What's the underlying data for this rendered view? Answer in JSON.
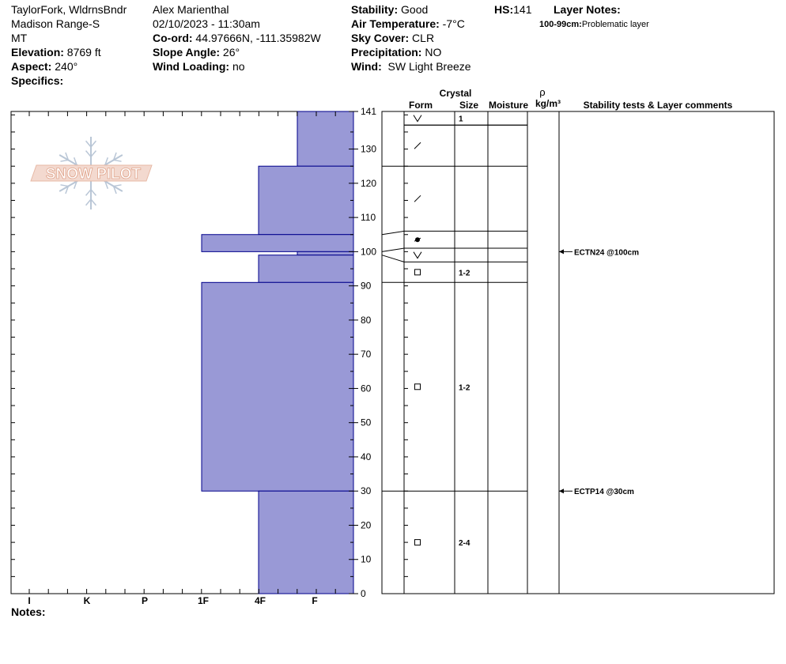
{
  "header": {
    "col1": {
      "location": "TaylorFork, WldrnsBndr",
      "range": "Madison Range-S",
      "state": "MT",
      "elevation_label": "Elevation:",
      "elevation_value": " 8769 ft",
      "aspect_label": "Aspect:",
      "aspect_value": " 240°",
      "specifics_label": "Specifics:"
    },
    "col2": {
      "observer": "Alex Marienthal",
      "datetime": "02/10/2023 - 11:30am",
      "coord_label": "Co-ord:",
      "coord_value": " 44.97666N, -111.35982W",
      "slope_label": "Slope Angle:",
      "slope_value": " 26°",
      "wind_loading_label": "Wind Loading:",
      "wind_loading_value": " no"
    },
    "col3": {
      "stability_label": "Stability:",
      "stability_value": " Good",
      "air_temp_label": "Air Temperature:",
      "air_temp_value": " -7°C",
      "sky_label": "Sky Cover:",
      "sky_value": " CLR",
      "precip_label": "Precipitation:",
      "precip_value": " NO",
      "wind_label": "Wind:",
      "wind_value": "  SW Light Breeze"
    },
    "hs_label": "HS:",
    "hs_value": "141",
    "layer_notes_label": "Layer Notes:",
    "layer_note_range": "100-99cm:",
    "layer_note_text": "Problematic layer"
  },
  "logo_text": "SNOW PILOT",
  "notes_label": "Notes:",
  "colors": {
    "hardness_fill": "#9999d6",
    "hardness_stroke": "#00008b",
    "grid": "#000000"
  },
  "chart_data": {
    "type": "snow-profile",
    "height_axis": {
      "label": "",
      "range": [
        0,
        141
      ],
      "ticks": [
        0,
        10,
        20,
        30,
        40,
        50,
        60,
        70,
        80,
        90,
        100,
        110,
        120,
        130,
        141
      ]
    },
    "hardness_axis": {
      "labels": [
        "I",
        "K",
        "P",
        "1F",
        "4F",
        "F"
      ],
      "scale": [
        "F",
        "4F",
        "1F",
        "P",
        "K",
        "I"
      ]
    },
    "hardness_profile": [
      {
        "top": 141,
        "bottom": 125,
        "hardness": "F"
      },
      {
        "top": 125,
        "bottom": 105,
        "hardness": "4F"
      },
      {
        "top": 105,
        "bottom": 100,
        "hardness": "1F"
      },
      {
        "top": 100,
        "bottom": 99,
        "hardness": "F"
      },
      {
        "top": 99,
        "bottom": 91,
        "hardness": "4F"
      },
      {
        "top": 91,
        "bottom": 30,
        "hardness": "1F"
      },
      {
        "top": 30,
        "bottom": 0,
        "hardness": "4F"
      }
    ],
    "column_headers": {
      "crystal": "Crystal",
      "form": "Form",
      "size": "Size",
      "moisture": "Moisture",
      "rho": "ρ",
      "density_unit": "kg/m³",
      "comments": "Stability tests & Layer comments"
    },
    "layer_boundaries": [
      141,
      137,
      125,
      106,
      101,
      97,
      91,
      30,
      0
    ],
    "layers": [
      {
        "top": 141,
        "bottom": 137,
        "form": "precip",
        "size": "1"
      },
      {
        "top": 137,
        "bottom": 125,
        "form": "decomp",
        "size": ""
      },
      {
        "top": 125,
        "bottom": 106,
        "form": "decomp",
        "size": ""
      },
      {
        "top": 106,
        "bottom": 101,
        "form": "melt",
        "size": ""
      },
      {
        "top": 101,
        "bottom": 97,
        "form": "precip",
        "size": ""
      },
      {
        "top": 97,
        "bottom": 91,
        "form": "facet",
        "size": "1-2"
      },
      {
        "top": 91,
        "bottom": 30,
        "form": "facet",
        "size": "1-2"
      },
      {
        "top": 30,
        "bottom": 0,
        "form": "facet",
        "size": "2-4"
      }
    ],
    "stability_tests": [
      {
        "height": 100,
        "label": "ECTN24 @100cm"
      },
      {
        "height": 30,
        "label": "ECTP14 @30cm"
      }
    ]
  }
}
